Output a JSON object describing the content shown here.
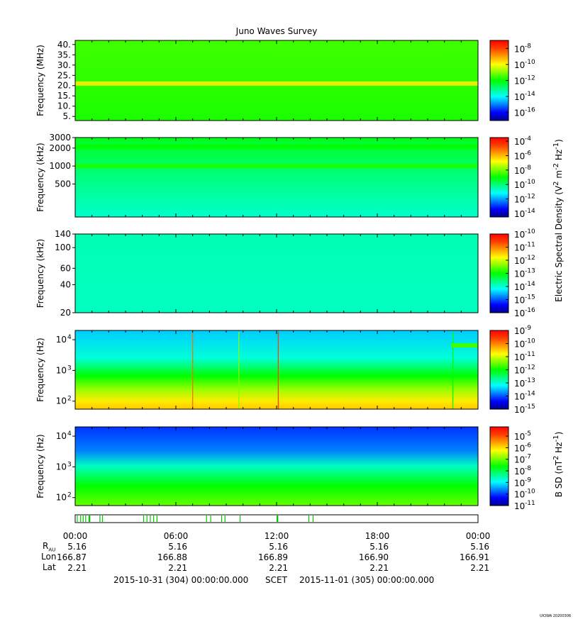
{
  "title": "Juno Waves Survey",
  "watermark": "UIOWA 20200306",
  "colorscale": [
    "#00008b",
    "#0000ff",
    "#0080ff",
    "#00ffff",
    "#00ff80",
    "#00ff00",
    "#80ff00",
    "#ffff00",
    "#ffa000",
    "#ff4000",
    "#ff0000"
  ],
  "chart_data": [
    {
      "type": "heatmap",
      "name": "HFR high",
      "ylabel": "Frequency (MHz)",
      "yscale": "linear",
      "ylim": [
        3,
        42
      ],
      "yticks": [
        "5.",
        "10.",
        "15.",
        "20.",
        "25.",
        "30.",
        "35.",
        "40."
      ],
      "ytick_values": [
        5,
        10,
        15,
        20,
        25,
        30,
        35,
        40
      ],
      "colorbar_ticks_exp": [
        "-16",
        "-14",
        "-12",
        "-10",
        "-8"
      ],
      "colorbar_range_exp": [
        -17,
        -7
      ],
      "features": [
        {
          "kind": "band",
          "freq": 21,
          "level": 0.72
        }
      ]
    },
    {
      "type": "heatmap",
      "name": "HFR low",
      "ylabel": "Frequency (kHz)",
      "yscale": "log",
      "ylim": [
        140,
        3000
      ],
      "yticks": [
        "3000",
        "2000",
        "1000",
        "500"
      ],
      "ytick_values": [
        3000,
        2000,
        1000,
        500
      ],
      "colorbar_ticks_exp": [
        "-14",
        "-12",
        "-10",
        "-8",
        "-6",
        "-4"
      ],
      "colorbar_range_exp": [
        -14.5,
        -3.5
      ],
      "features": [
        {
          "kind": "band",
          "freq": 2100,
          "level": 0.5
        },
        {
          "kind": "band",
          "freq": 1000,
          "level": 0.52
        }
      ]
    },
    {
      "type": "heatmap",
      "name": "LFR high",
      "ylabel": "Frequency (kHz)",
      "yscale": "log",
      "ylim": [
        20,
        140
      ],
      "yticks": [
        "140",
        "100",
        "60",
        "40",
        "20"
      ],
      "ytick_values": [
        140,
        100,
        60,
        40,
        20
      ],
      "colorbar_ticks_exp": [
        "-16",
        "-15",
        "-14",
        "-13",
        "-12",
        "-11",
        "-10"
      ],
      "colorbar_range_exp": [
        -16,
        -10
      ],
      "features": []
    },
    {
      "type": "heatmap",
      "name": "LFR low",
      "ylabel": "Frequency (Hz)",
      "yscale": "log",
      "ylim": [
        55,
        20000
      ],
      "yticks": [
        "10",
        "10",
        "10"
      ],
      "ytick_exp": [
        "4",
        "3",
        "2"
      ],
      "ytick_values": [
        10000,
        1000,
        100
      ],
      "colorbar_ticks_exp": [
        "-15",
        "-14",
        "-13",
        "-12",
        "-11",
        "-10",
        "-9"
      ],
      "colorbar_range_exp": [
        -15,
        -9
      ],
      "features": [
        {
          "kind": "spike",
          "hour": 7.0,
          "level": 0.85
        },
        {
          "kind": "spike",
          "hour": 9.75,
          "level": 0.6
        },
        {
          "kind": "spike",
          "hour": 12.1,
          "level": 0.9
        },
        {
          "kind": "spike",
          "hour": 22.5,
          "level": 0.5
        },
        {
          "kind": "blob",
          "hour_start": 22.4,
          "hour_end": 24.0,
          "freq": 6500,
          "level": 0.55
        }
      ]
    },
    {
      "type": "heatmap",
      "name": "Magnetic",
      "ylabel": "Frequency (Hz)",
      "yscale": "log",
      "ylim": [
        55,
        20000
      ],
      "yticks": [
        "10",
        "10",
        "10"
      ],
      "ytick_exp": [
        "4",
        "3",
        "2"
      ],
      "ytick_values": [
        10000,
        1000,
        100
      ],
      "colorbar_ticks_exp": [
        "-11",
        "-10",
        "-9",
        "-8",
        "-7",
        "-6",
        "-5"
      ],
      "colorbar_range_exp": [
        -11,
        -4.2
      ],
      "features": []
    }
  ],
  "electric_colorbar_label": "Electric Spectral Density (V",
  "electric_colorbar_sup1": "2",
  "electric_colorbar_mid": " m",
  "electric_colorbar_sup2": "-2",
  "electric_colorbar_mid2": " Hz",
  "electric_colorbar_sup3": "-1",
  "electric_colorbar_end": ")",
  "bsd_label": "B SD (nT",
  "bsd_sup1": "2",
  "bsd_mid": " Hz",
  "bsd_sup2": "-1",
  "bsd_end": ")",
  "mode_bars": {
    "ranges_hours": [
      [
        0.1,
        0.15
      ],
      [
        0.3,
        0.35
      ],
      [
        0.45,
        0.5
      ],
      [
        0.6,
        0.65
      ],
      [
        0.8,
        0.9
      ],
      [
        1.45,
        1.5
      ],
      [
        1.6,
        1.65
      ],
      [
        4.05,
        4.1
      ],
      [
        4.25,
        4.3
      ],
      [
        4.45,
        4.5
      ],
      [
        4.65,
        4.7
      ],
      [
        4.85,
        4.9
      ],
      [
        7.8,
        7.85
      ],
      [
        8.05,
        8.1
      ],
      [
        8.7,
        8.75
      ],
      [
        8.9,
        8.95
      ],
      [
        9.8,
        9.85
      ],
      [
        12.0,
        12.1
      ],
      [
        13.9,
        13.95
      ],
      [
        14.15,
        14.2
      ]
    ]
  },
  "time_axis": {
    "ticks": [
      "00:00",
      "06:00",
      "12:00",
      "18:00",
      "00:00"
    ],
    "tick_hours": [
      0,
      6,
      12,
      18,
      24
    ],
    "row_labels": {
      "rau_main": "R",
      "rau_sub": "AU",
      "lon": "Lon",
      "lat": "Lat"
    },
    "rau": [
      "5.16",
      "5.16",
      "5.16",
      "5.16",
      "5.16"
    ],
    "lon": [
      "166.87",
      "166.88",
      "166.89",
      "166.90",
      "166.91"
    ],
    "lat": [
      "2.21",
      "2.21",
      "2.21",
      "2.21",
      "2.21"
    ]
  },
  "footer": {
    "start": "2015-10-31 (304) 00:00:00.000",
    "scet": "SCET",
    "end": "2015-11-01 (305) 00:00:00.000"
  }
}
